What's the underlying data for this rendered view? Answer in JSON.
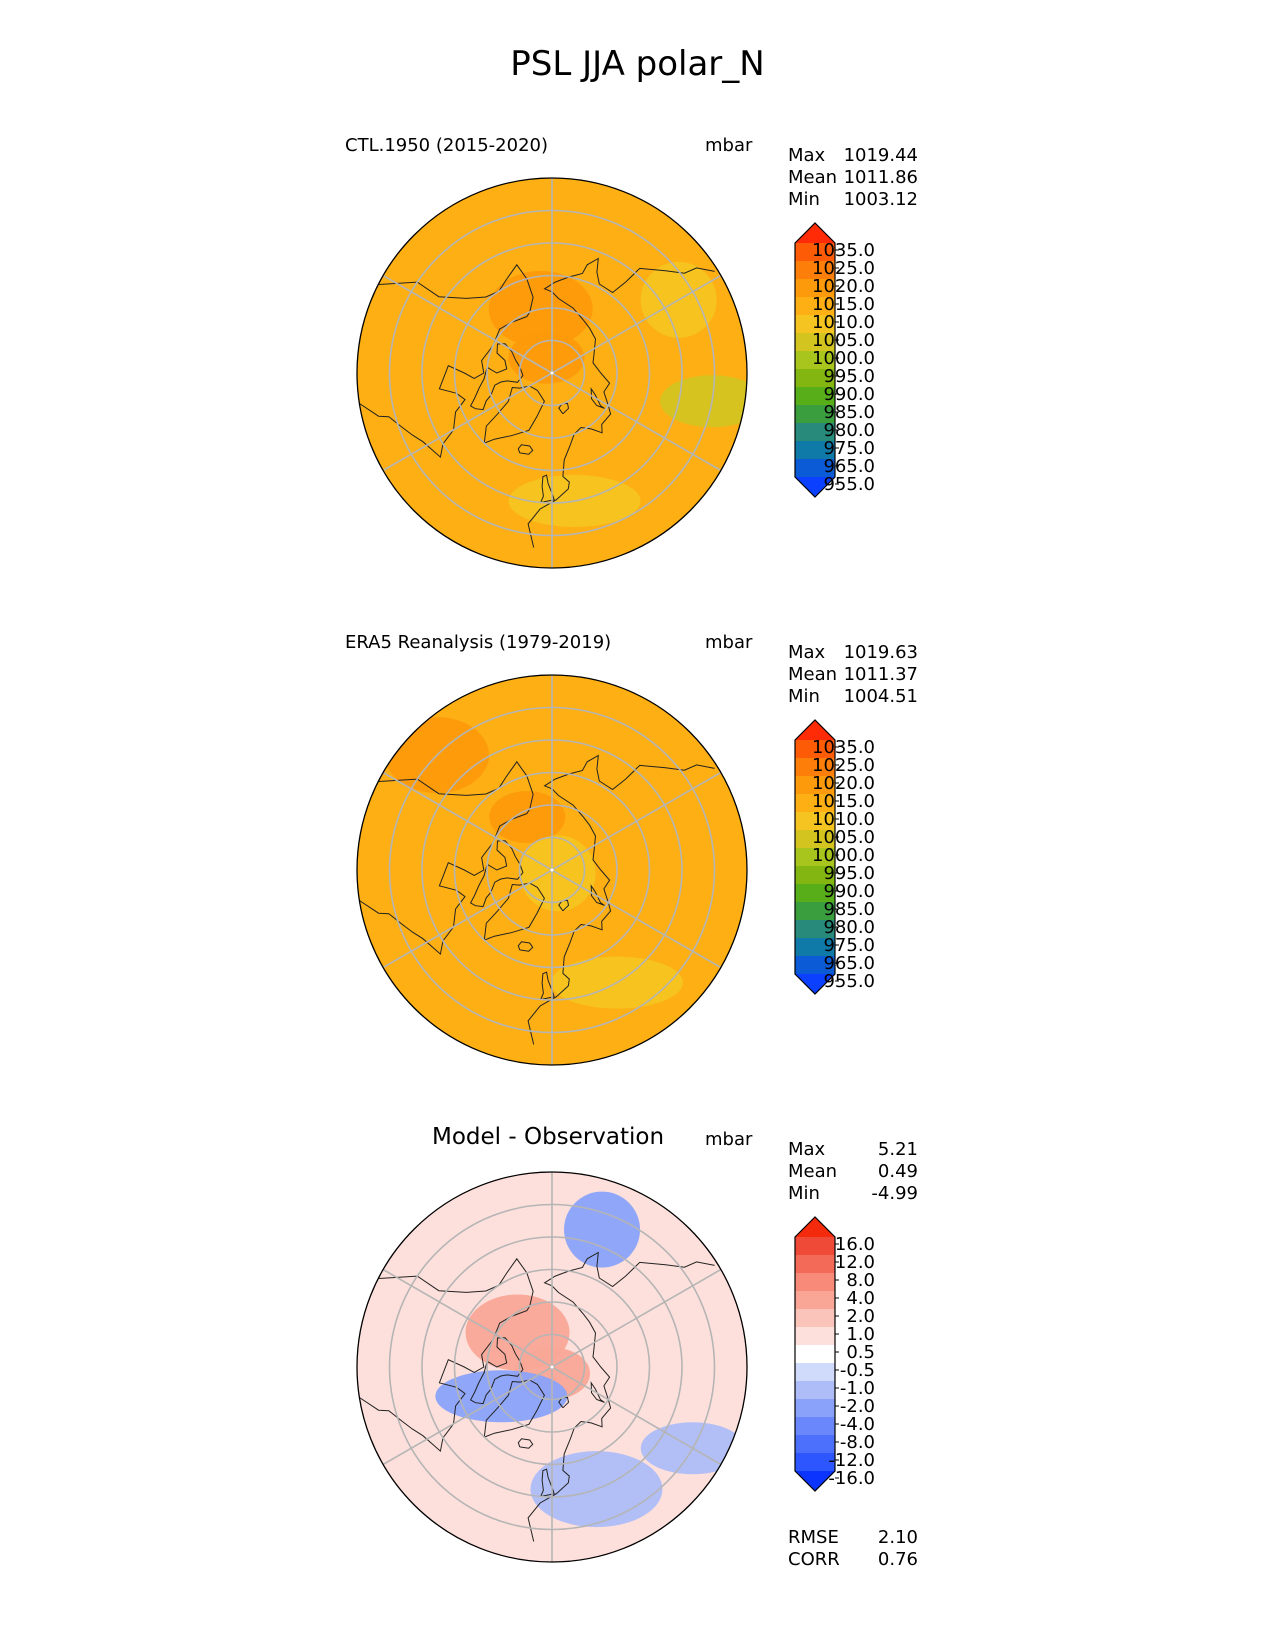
{
  "title": "PSL JJA polar_N",
  "colors": {
    "abs_scale": [
      "#0b40ff",
      "#0c5bd6",
      "#0f7aa8",
      "#278a7a",
      "#3a9e3f",
      "#57ae18",
      "#84b611",
      "#a7c51c",
      "#d4c420",
      "#f6c420",
      "#fdaf14",
      "#fd9a0b",
      "#fd7e08",
      "#fe5b06",
      "#ff2a06"
    ],
    "diff_scale": [
      "#0b34ff",
      "#2d56ff",
      "#4d70fc",
      "#6a88fb",
      "#8aa2fa",
      "#aebdf8",
      "#d0dafa",
      "#ffffff",
      "#fde0db",
      "#fbc4ba",
      "#f9a697",
      "#f78a79",
      "#f36b58",
      "#ee4a37",
      "#f42a0d"
    ]
  },
  "chart_data": [
    {
      "type": "heatmap",
      "projection": "north-polar-stereographic",
      "label": "CTL.1950 (2015-2020)",
      "units": "mbar",
      "stats": [
        {
          "name": "Max",
          "value": "1019.44"
        },
        {
          "name": "Mean",
          "value": "1011.86"
        },
        {
          "name": "Min",
          "value": "1003.12"
        }
      ],
      "colorbar": {
        "extend": "both",
        "tick_labels": [
          "1035.0",
          "1025.0",
          "1020.0",
          "1015.0",
          "1010.0",
          "1005.0",
          "1000.0",
          "995.0",
          "990.0",
          "985.0",
          "980.0",
          "975.0",
          "965.0",
          "955.0"
        ],
        "levels": [
          955,
          965,
          975,
          980,
          985,
          990,
          995,
          1000,
          1005,
          1010,
          1015,
          1020,
          1025,
          1035
        ]
      },
      "field_summary": {
        "background": 1014,
        "anomalies": [
          {
            "lat": 85,
            "lon": 200,
            "value": 1017
          },
          {
            "lat": 70,
            "lon": 190,
            "value": 1018
          },
          {
            "lat": 50,
            "lon": 10,
            "value": 1009
          },
          {
            "lat": 45,
            "lon": 120,
            "value": 1008
          },
          {
            "lat": 40,
            "lon": 80,
            "value": 1004
          }
        ]
      }
    },
    {
      "type": "heatmap",
      "projection": "north-polar-stereographic",
      "label": "ERA5 Reanalysis (1979-2019)",
      "units": "mbar",
      "stats": [
        {
          "name": "Max",
          "value": "1019.63"
        },
        {
          "name": "Mean",
          "value": "1011.37"
        },
        {
          "name": "Min",
          "value": "1004.51"
        }
      ],
      "colorbar": {
        "extend": "both",
        "tick_labels": [
          "1035.0",
          "1025.0",
          "1020.0",
          "1015.0",
          "1010.0",
          "1005.0",
          "1000.0",
          "995.0",
          "990.0",
          "985.0",
          "980.0",
          "975.0",
          "965.0",
          "955.0"
        ],
        "levels": [
          955,
          965,
          975,
          980,
          985,
          990,
          995,
          1000,
          1005,
          1010,
          1015,
          1020,
          1025,
          1035
        ]
      },
      "field_summary": {
        "background": 1013,
        "anomalies": [
          {
            "lat": 72,
            "lon": 205,
            "value": 1017
          },
          {
            "lat": 40,
            "lon": 225,
            "value": 1018
          },
          {
            "lat": 50,
            "lon": 30,
            "value": 1009
          },
          {
            "lat": 88,
            "lon": 60,
            "value": 1008
          }
        ]
      }
    },
    {
      "type": "heatmap",
      "projection": "north-polar-stereographic",
      "label": "Model - Observation",
      "units": "mbar",
      "stats": [
        {
          "name": "Max",
          "value": "5.21"
        },
        {
          "name": "Mean",
          "value": "0.49"
        },
        {
          "name": "Min",
          "value": "-4.99"
        }
      ],
      "extra_stats": [
        {
          "name": "RMSE",
          "value": "2.10"
        },
        {
          "name": "CORR",
          "value": "0.76"
        }
      ],
      "colorbar": {
        "extend": "both",
        "tick_labels": [
          "16.0",
          "12.0",
          "8.0",
          "4.0",
          "2.0",
          "1.0",
          "0.5",
          "-0.5",
          "-1.0",
          "-2.0",
          "-4.0",
          "-8.0",
          "-12.0",
          "-16.0"
        ],
        "levels": [
          -16,
          -12,
          -8,
          -4,
          -2,
          -1,
          -0.5,
          0.5,
          1,
          2,
          4,
          8,
          12,
          16
        ]
      },
      "field_summary": {
        "background": 0.8,
        "anomalies": [
          {
            "lat": 88,
            "lon": 0,
            "value": 3
          },
          {
            "lat": 75,
            "lon": 225,
            "value": 2
          },
          {
            "lat": 72,
            "lon": 300,
            "value": -4
          },
          {
            "lat": 45,
            "lon": 160,
            "value": -3
          },
          {
            "lat": 40,
            "lon": 60,
            "value": -2
          },
          {
            "lat": 50,
            "lon": 20,
            "value": -1.5
          }
        ]
      }
    }
  ]
}
